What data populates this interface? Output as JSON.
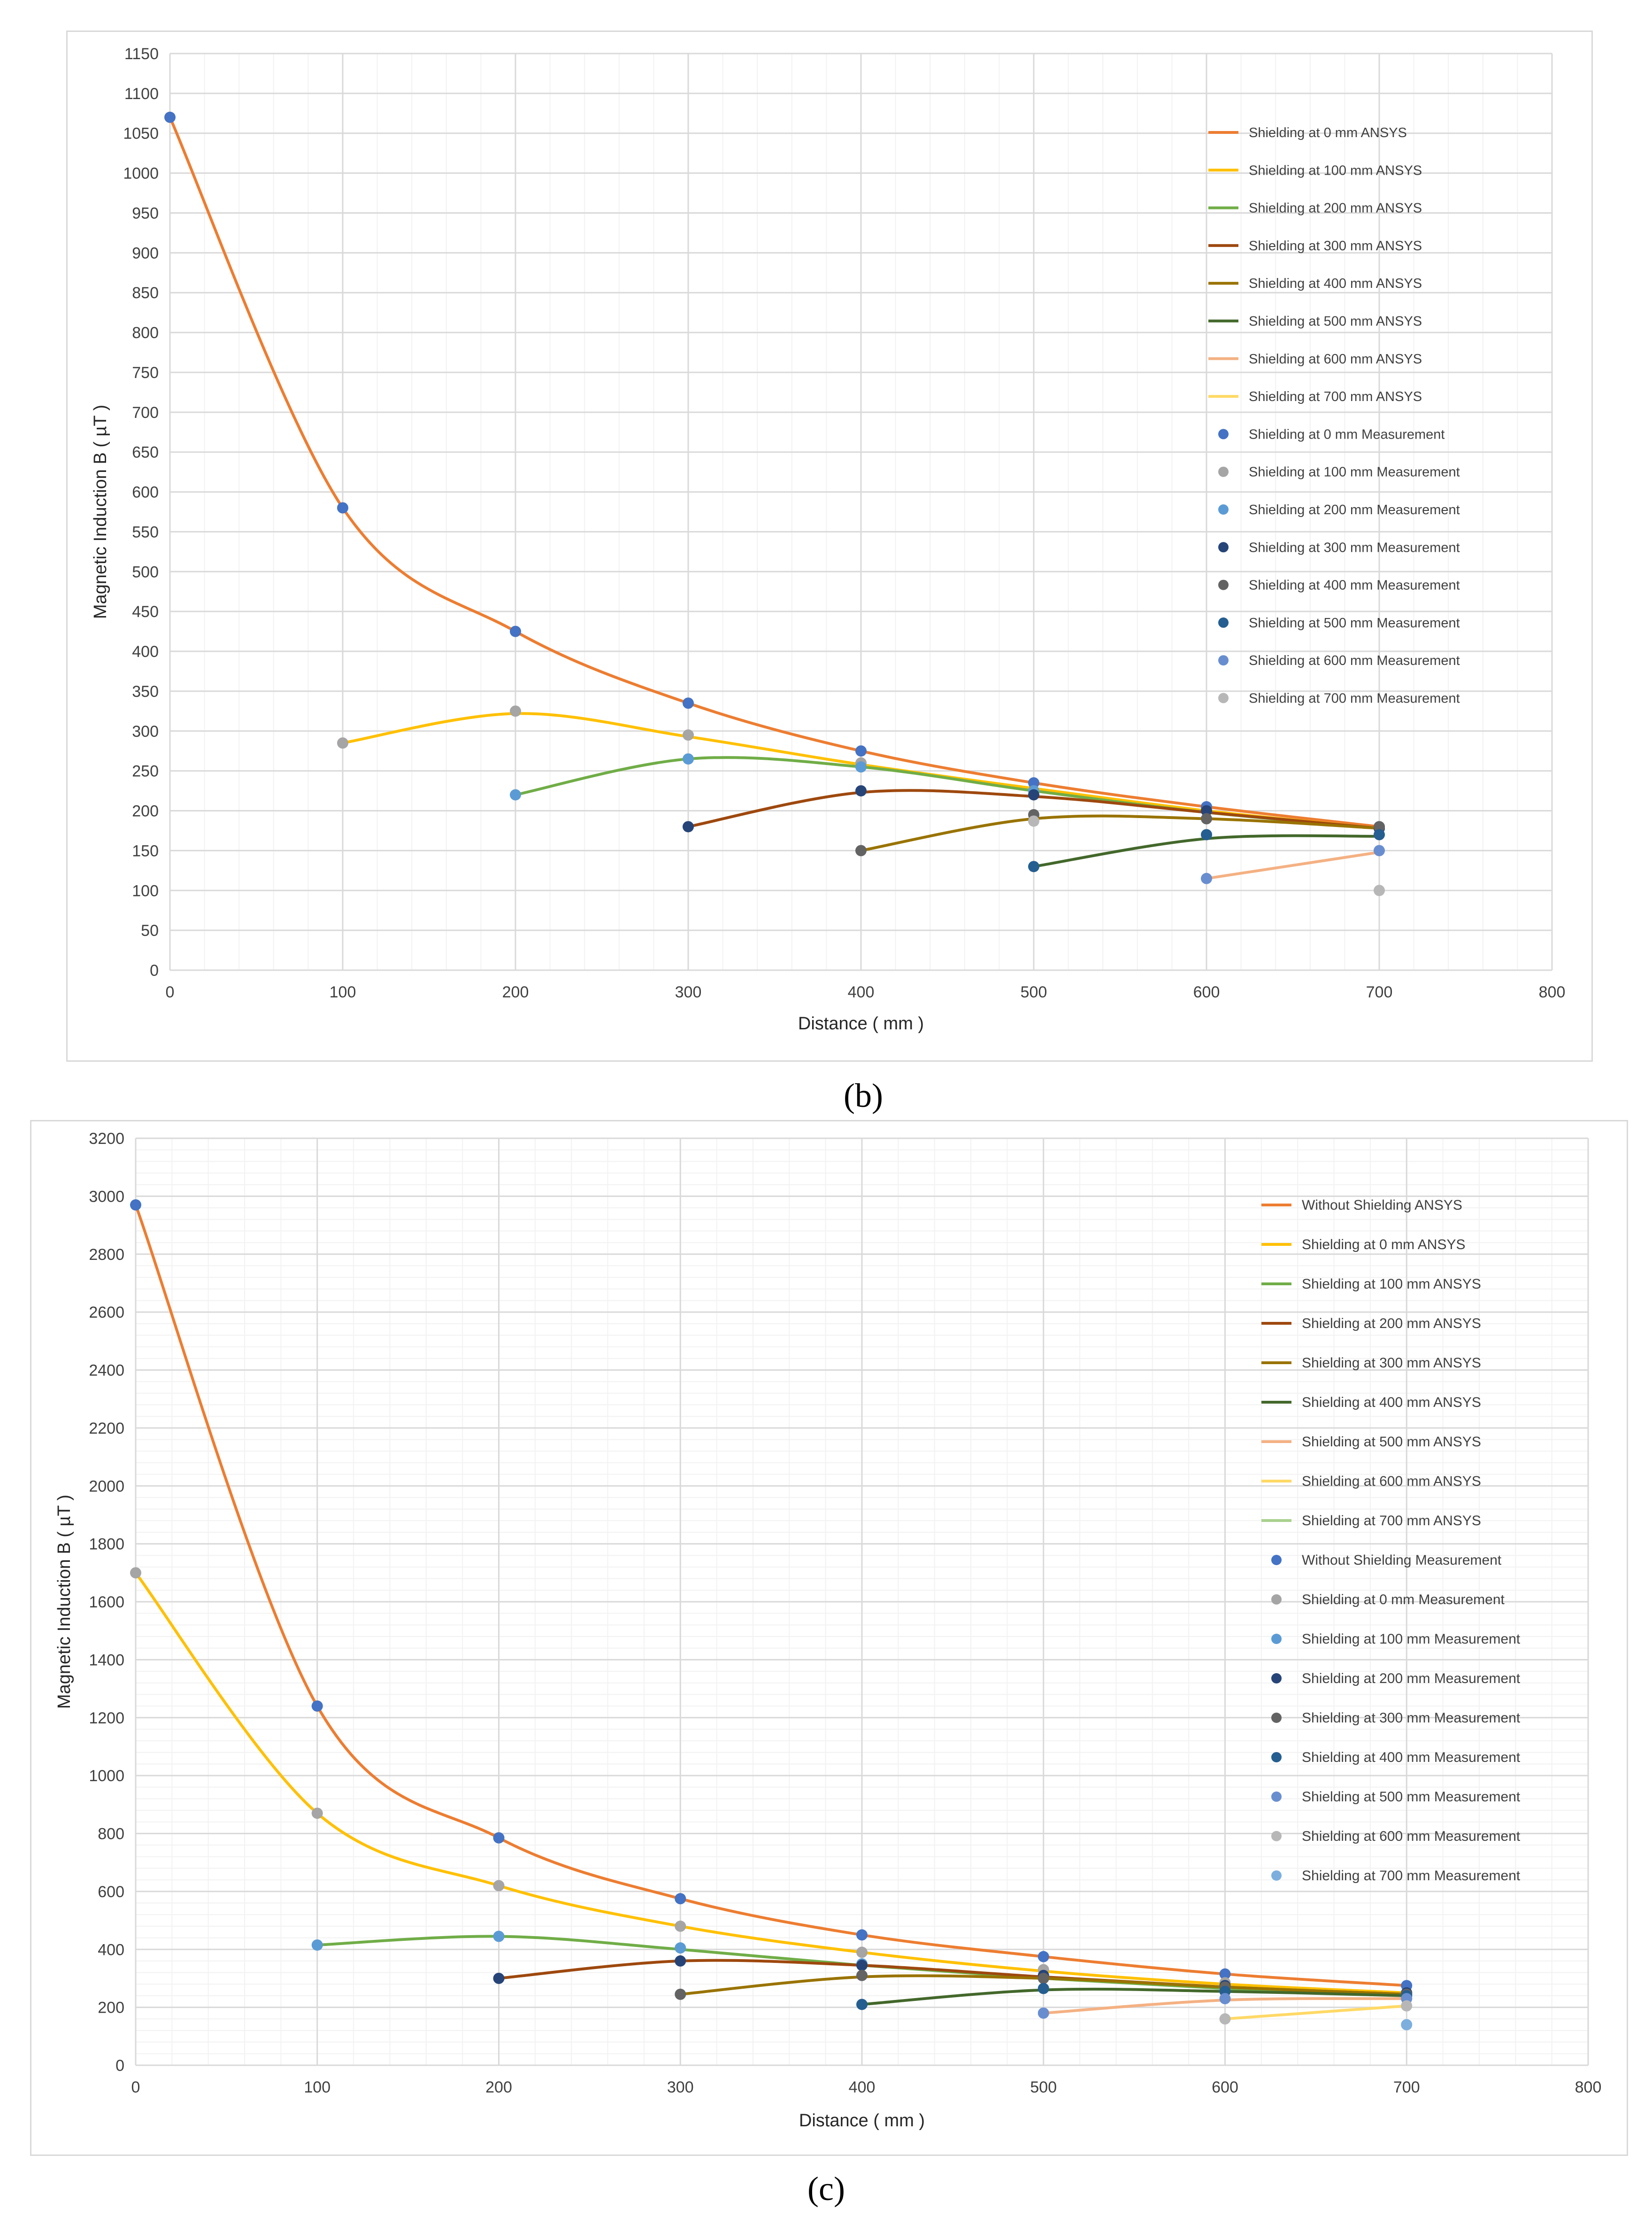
{
  "captions": {
    "b": "(b)",
    "c": "(c)"
  },
  "chart_data": [
    {
      "id": "b",
      "type": "line",
      "xlabel": "Distance ( mm )",
      "ylabel": "Magnetic Induction B ( µT )",
      "xlim": [
        0,
        800
      ],
      "xticks": [
        0,
        100,
        200,
        300,
        400,
        500,
        600,
        700,
        800
      ],
      "ylim": [
        0,
        1150
      ],
      "yticks": [
        0,
        50,
        100,
        150,
        200,
        250,
        300,
        350,
        400,
        450,
        500,
        550,
        600,
        650,
        700,
        750,
        800,
        850,
        900,
        950,
        1000,
        1050,
        1100,
        1150
      ],
      "legend_position": "top-right",
      "grid": true,
      "series": [
        {
          "name": "Shielding at 0 mm ANSYS",
          "kind": "line",
          "color": "#ed7d31",
          "x": [
            0,
            100,
            200,
            300,
            400,
            500,
            600,
            700
          ],
          "y": [
            1070,
            580,
            425,
            335,
            275,
            235,
            205,
            180
          ]
        },
        {
          "name": "Shielding at 100 mm ANSYS",
          "kind": "line",
          "color": "#ffc000",
          "x": [
            100,
            200,
            300,
            400,
            500,
            600,
            700
          ],
          "y": [
            285,
            322,
            293,
            258,
            228,
            200,
            178
          ]
        },
        {
          "name": "Shielding at 200 mm ANSYS",
          "kind": "line",
          "color": "#70ad47",
          "x": [
            200,
            300,
            400,
            500,
            600,
            700
          ],
          "y": [
            220,
            265,
            255,
            225,
            198,
            178
          ]
        },
        {
          "name": "Shielding at 300 mm ANSYS",
          "kind": "line",
          "color": "#9e480e",
          "x": [
            300,
            400,
            500,
            600,
            700
          ],
          "y": [
            180,
            223,
            218,
            198,
            178
          ]
        },
        {
          "name": "Shielding at 400 mm ANSYS",
          "kind": "line",
          "color": "#997300",
          "x": [
            400,
            500,
            600,
            700
          ],
          "y": [
            150,
            190,
            190,
            178
          ]
        },
        {
          "name": "Shielding at 500 mm ANSYS",
          "kind": "line",
          "color": "#43682b",
          "x": [
            500,
            600,
            700
          ],
          "y": [
            130,
            165,
            168
          ]
        },
        {
          "name": "Shielding at 600 mm ANSYS",
          "kind": "line",
          "color": "#f4b183",
          "x": [
            600,
            700
          ],
          "y": [
            115,
            148
          ]
        },
        {
          "name": "Shielding at 700 mm ANSYS",
          "kind": "line",
          "color": "#ffd966",
          "x": [],
          "y": []
        },
        {
          "name": "Shielding at 0 mm Measurement",
          "kind": "marker",
          "color": "#4472c4",
          "x": [
            0,
            100,
            200,
            300,
            400,
            500,
            600,
            700
          ],
          "y": [
            1070,
            580,
            425,
            335,
            275,
            235,
            205,
            180
          ]
        },
        {
          "name": "Shielding at 100 mm Measurement",
          "kind": "marker",
          "color": "#a5a5a5",
          "x": [
            100,
            200,
            300,
            400,
            500,
            600,
            700
          ],
          "y": [
            285,
            325,
            295,
            260,
            225,
            200,
            178
          ]
        },
        {
          "name": "Shielding at 200 mm Measurement",
          "kind": "marker",
          "color": "#5b9bd5",
          "x": [
            200,
            300,
            400,
            500,
            600,
            700
          ],
          "y": [
            220,
            265,
            255,
            225,
            200,
            178
          ]
        },
        {
          "name": "Shielding at 300 mm Measurement",
          "kind": "marker",
          "color": "#264478",
          "x": [
            300,
            400,
            500,
            600,
            700
          ],
          "y": [
            180,
            225,
            220,
            200,
            178
          ]
        },
        {
          "name": "Shielding at 400 mm Measurement",
          "kind": "marker",
          "color": "#636363",
          "x": [
            400,
            500,
            600,
            700
          ],
          "y": [
            150,
            195,
            190,
            180
          ]
        },
        {
          "name": "Shielding at 500 mm Measurement",
          "kind": "marker",
          "color": "#255e91",
          "x": [
            500,
            600,
            700
          ],
          "y": [
            130,
            170,
            170
          ]
        },
        {
          "name": "Shielding at 600 mm Measurement",
          "kind": "marker",
          "color": "#698ed0",
          "x": [
            600,
            700
          ],
          "y": [
            115,
            150
          ]
        },
        {
          "name": "Shielding at 700 mm Measurement",
          "kind": "marker",
          "color": "#b7b7b7",
          "x": [
            500,
            700
          ],
          "y": [
            187,
            100
          ]
        }
      ]
    },
    {
      "id": "c",
      "type": "line",
      "xlabel": "Distance ( mm )",
      "ylabel": "Magnetic Induction B ( µT )",
      "xlim": [
        0,
        800
      ],
      "xticks": [
        0,
        100,
        200,
        300,
        400,
        500,
        600,
        700,
        800
      ],
      "ylim": [
        0,
        3200
      ],
      "yticks": [
        0,
        200,
        400,
        600,
        800,
        1000,
        1200,
        1400,
        1600,
        1800,
        2000,
        2200,
        2400,
        2600,
        2800,
        3000,
        3200
      ],
      "legend_position": "top-right",
      "grid": true,
      "series": [
        {
          "name": "Without Shielding ANSYS",
          "kind": "line",
          "color": "#ed7d31",
          "x": [
            0,
            100,
            200,
            300,
            400,
            500,
            600,
            700
          ],
          "y": [
            2970,
            1240,
            785,
            575,
            450,
            375,
            315,
            275
          ]
        },
        {
          "name": "Shielding at 0 mm ANSYS",
          "kind": "line",
          "color": "#ffc000",
          "x": [
            0,
            100,
            200,
            300,
            400,
            500,
            600,
            700
          ],
          "y": [
            1700,
            870,
            620,
            480,
            390,
            325,
            280,
            250
          ]
        },
        {
          "name": "Shielding at 100 mm ANSYS",
          "kind": "line",
          "color": "#70ad47",
          "x": [
            100,
            200,
            300,
            400,
            500,
            600,
            700
          ],
          "y": [
            415,
            445,
            400,
            345,
            300,
            265,
            240
          ]
        },
        {
          "name": "Shielding at 200 mm ANSYS",
          "kind": "line",
          "color": "#9e480e",
          "x": [
            200,
            300,
            400,
            500,
            600,
            700
          ],
          "y": [
            300,
            360,
            345,
            305,
            270,
            245
          ]
        },
        {
          "name": "Shielding at 300 mm ANSYS",
          "kind": "line",
          "color": "#997300",
          "x": [
            300,
            400,
            500,
            600,
            700
          ],
          "y": [
            245,
            305,
            300,
            270,
            245
          ]
        },
        {
          "name": "Shielding at 400 mm ANSYS",
          "kind": "line",
          "color": "#43682b",
          "x": [
            400,
            500,
            600,
            700
          ],
          "y": [
            210,
            260,
            255,
            240
          ]
        },
        {
          "name": "Shielding at 500 mm ANSYS",
          "kind": "line",
          "color": "#f4b183",
          "x": [
            500,
            600,
            700
          ],
          "y": [
            180,
            225,
            230
          ]
        },
        {
          "name": "Shielding at 600 mm ANSYS",
          "kind": "line",
          "color": "#ffd966",
          "x": [
            600,
            700
          ],
          "y": [
            160,
            205
          ]
        },
        {
          "name": "Shielding at 700 mm ANSYS",
          "kind": "line",
          "color": "#a9d18e",
          "x": [],
          "y": []
        },
        {
          "name": "Without Shielding Measurement",
          "kind": "marker",
          "color": "#4472c4",
          "x": [
            0,
            100,
            200,
            300,
            400,
            500,
            600,
            700
          ],
          "y": [
            2970,
            1240,
            785,
            575,
            450,
            375,
            315,
            275
          ]
        },
        {
          "name": "Shielding at 0 mm Measurement",
          "kind": "marker",
          "color": "#a5a5a5",
          "x": [
            0,
            100,
            200,
            300,
            400,
            500,
            600,
            700
          ],
          "y": [
            1700,
            870,
            620,
            480,
            390,
            330,
            285,
            250
          ]
        },
        {
          "name": "Shielding at 100 mm Measurement",
          "kind": "marker",
          "color": "#5b9bd5",
          "x": [
            100,
            200,
            300,
            400,
            500,
            600,
            700
          ],
          "y": [
            415,
            445,
            405,
            350,
            305,
            270,
            245
          ]
        },
        {
          "name": "Shielding at 200 mm Measurement",
          "kind": "marker",
          "color": "#264478",
          "x": [
            200,
            300,
            400,
            500,
            600,
            700
          ],
          "y": [
            300,
            360,
            345,
            310,
            275,
            250
          ]
        },
        {
          "name": "Shielding at 300 mm Measurement",
          "kind": "marker",
          "color": "#636363",
          "x": [
            300,
            400,
            500,
            600,
            700
          ],
          "y": [
            245,
            310,
            300,
            270,
            245
          ]
        },
        {
          "name": "Shielding at 400 mm Measurement",
          "kind": "marker",
          "color": "#255e91",
          "x": [
            400,
            500,
            600,
            700
          ],
          "y": [
            210,
            265,
            255,
            240
          ]
        },
        {
          "name": "Shielding at 500 mm Measurement",
          "kind": "marker",
          "color": "#698ed0",
          "x": [
            500,
            600,
            700
          ],
          "y": [
            180,
            230,
            230
          ]
        },
        {
          "name": "Shielding at 600 mm Measurement",
          "kind": "marker",
          "color": "#b7b7b7",
          "x": [
            600,
            700
          ],
          "y": [
            160,
            205
          ]
        },
        {
          "name": "Shielding at 700 mm Measurement",
          "kind": "marker",
          "color": "#7cafdd",
          "x": [
            700
          ],
          "y": [
            140
          ]
        }
      ]
    }
  ]
}
